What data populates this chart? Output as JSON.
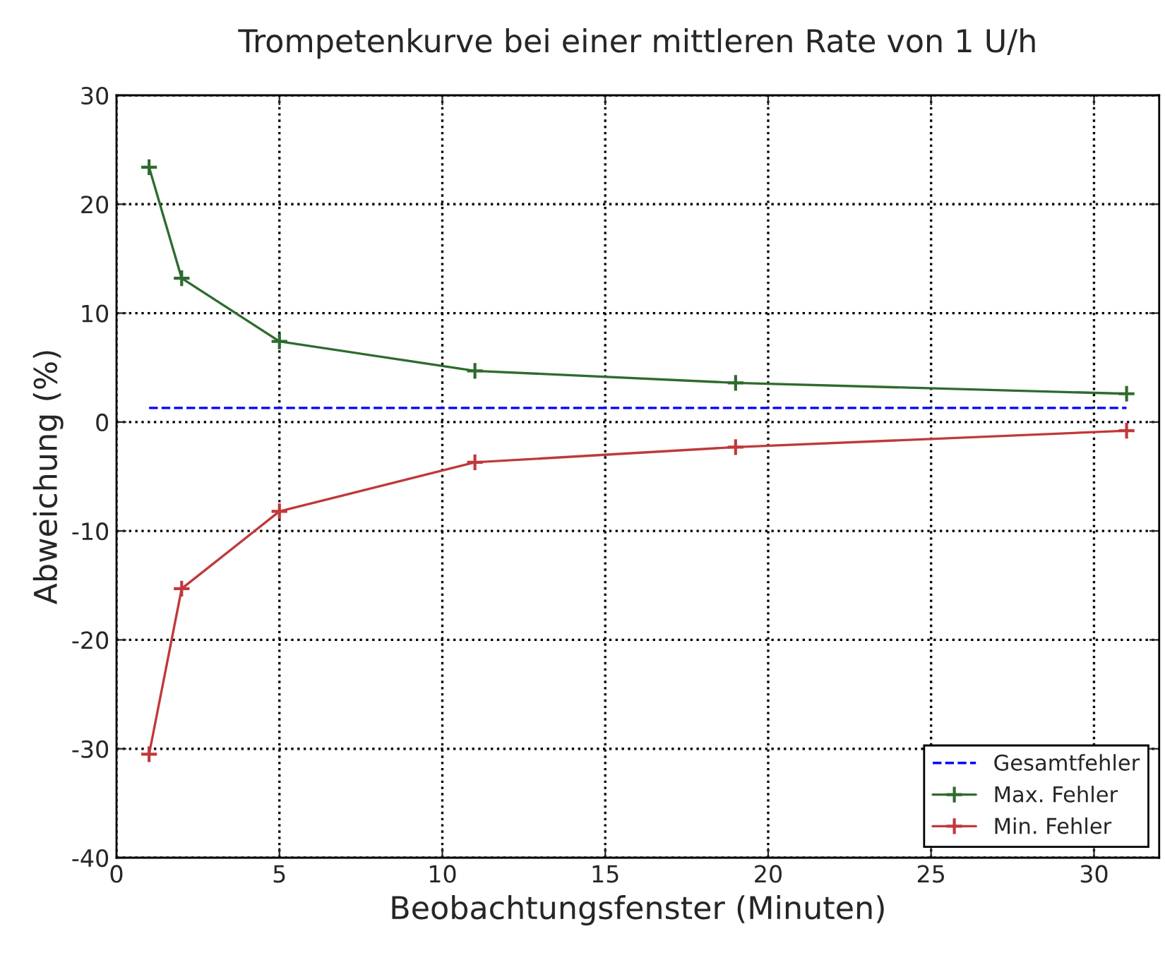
{
  "chart_data": {
    "type": "line",
    "title": "Trompetenkurve bei einer mittleren Rate von 1 U/h",
    "xlabel": "Beobachtungsfenster (Minuten)",
    "ylabel": "Abweichung (%)",
    "series": [
      {
        "name": "Gesamtfehler",
        "color": "#0000ff",
        "x": [
          1,
          31
        ],
        "values": [
          1.3,
          1.3
        ],
        "line_style": "dashed",
        "marker": "none"
      },
      {
        "name": "Max. Fehler",
        "color": "#2e6b2e",
        "x": [
          1,
          2,
          5,
          11,
          19,
          31
        ],
        "values": [
          23.4,
          13.2,
          7.4,
          4.7,
          3.6,
          2.6
        ],
        "line_style": "solid",
        "marker": "cross"
      },
      {
        "name": "Min. Fehler",
        "color": "#c0393b",
        "x": [
          1,
          2,
          5,
          11,
          19,
          31
        ],
        "values": [
          -30.5,
          -15.3,
          -8.2,
          -3.7,
          -2.3,
          -0.8
        ],
        "line_style": "solid",
        "marker": "cross"
      }
    ],
    "xlim": [
      0,
      32
    ],
    "xticks": [
      0,
      5,
      10,
      15,
      20,
      25,
      30
    ],
    "ylim": [
      -40,
      30
    ],
    "yticks": [
      -40,
      -30,
      -20,
      -10,
      0,
      10,
      20,
      30
    ],
    "grid": true,
    "legend": "bottom right"
  }
}
